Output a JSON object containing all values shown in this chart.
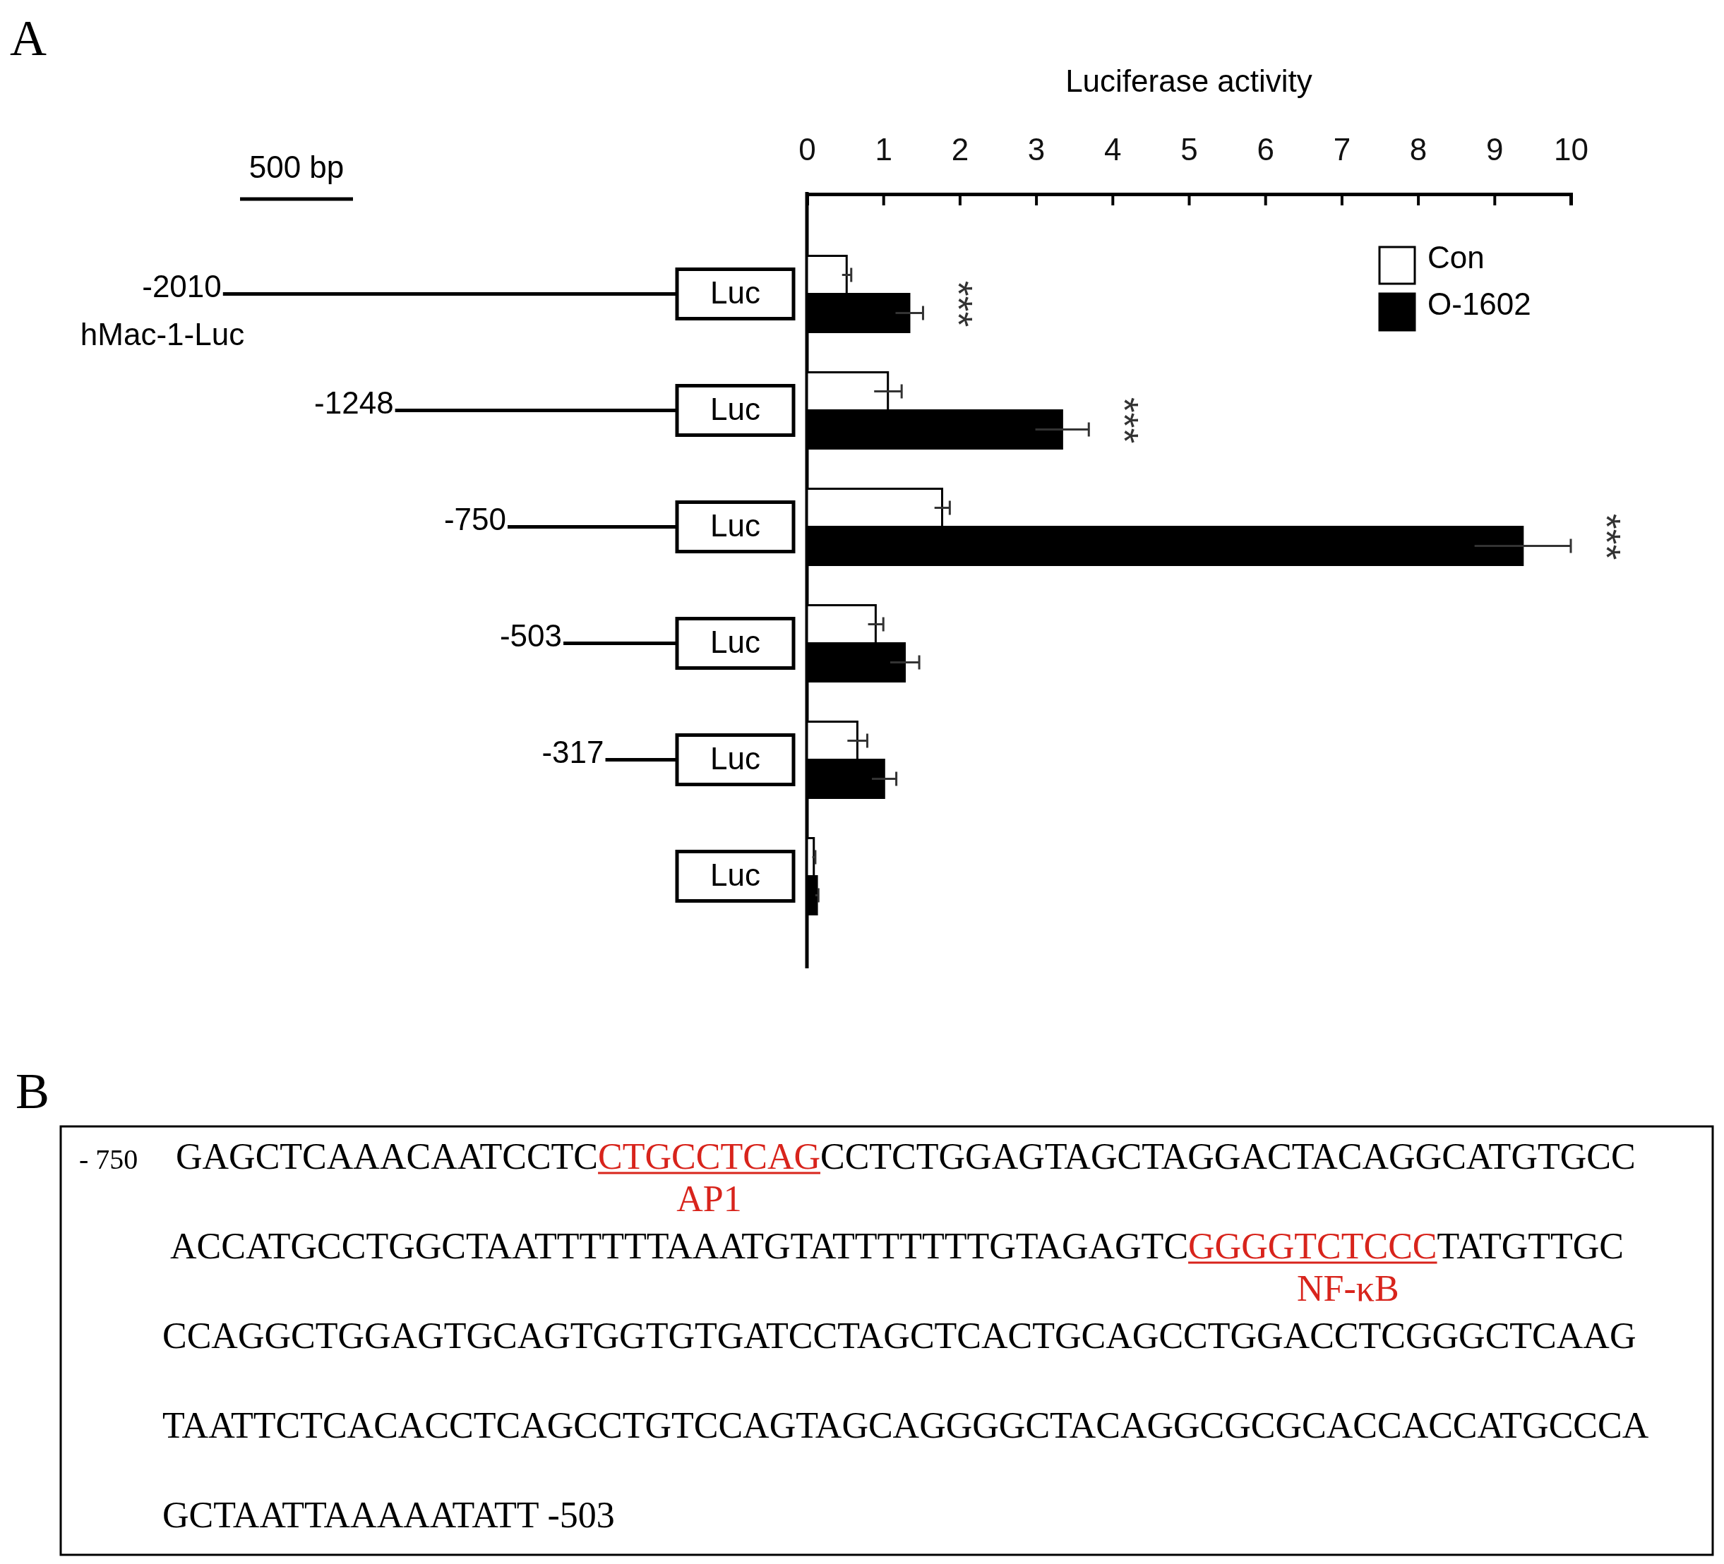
{
  "chart_data": [
    {
      "type": "bar",
      "orientation": "horizontal",
      "xlabel": "Luciferase activity",
      "categories": [
        null,
        null,
        null,
        null,
        null,
        null
      ],
      "series": [
        {
          "name": "Con",
          "color": "#ffffff",
          "values": [
            0.52,
            1.06,
            1.77,
            0.9,
            0.66,
            0.09
          ],
          "errors": [
            0.06,
            0.18,
            0.1,
            0.1,
            0.13,
            0.02
          ]
        },
        {
          "name": "O-1602",
          "color": "#000000",
          "values": [
            1.34,
            3.34,
            9.37,
            1.28,
            1.01,
            0.13
          ],
          "errors": [
            0.18,
            0.35,
            0.63,
            0.19,
            0.16,
            0.02
          ]
        }
      ],
      "xlim": [
        0,
        10
      ],
      "xticks": [
        0,
        1,
        2,
        3,
        4,
        5,
        6,
        7,
        8,
        9,
        10
      ],
      "legend": "top right",
      "annotations": [
        "A",
        "500 bp",
        "hMac-1-Luc",
        "Luc",
        "Luc",
        "Luc",
        "Luc",
        "Luc",
        "Luc",
        "***",
        "***",
        "***",
        "-2010",
        "-1248",
        "-750",
        "-503",
        "-317"
      ]
    },
    {
      "type": "other",
      "annotations": [
        "B",
        "- 750",
        "GAGCTCAAACAATCCTC",
        "CTGCCTCAG",
        "CCTCTGGAGTAGCTAGGACTACAGGCATGTGCC",
        "AP1",
        "ACCATGCCTGGCTAATTTTTTAAATGTATTTTTTTGTAGAGTC",
        "GGGGTCTCCC",
        "TATGTTGC",
        "NF-κB",
        "CCAGGCTGGAGTGCAGTGGTGTGATCCTAGCTCACTGCAGCCTGGACCTCGGGCTCAAG",
        "TAATTCTCACACCTCAGCCTGTCCAGTAGCAGGGGCTACAGGCGCGCACCACCATGCCCA",
        "GCTAATTAAAAATATT -503"
      ]
    }
  ]
}
